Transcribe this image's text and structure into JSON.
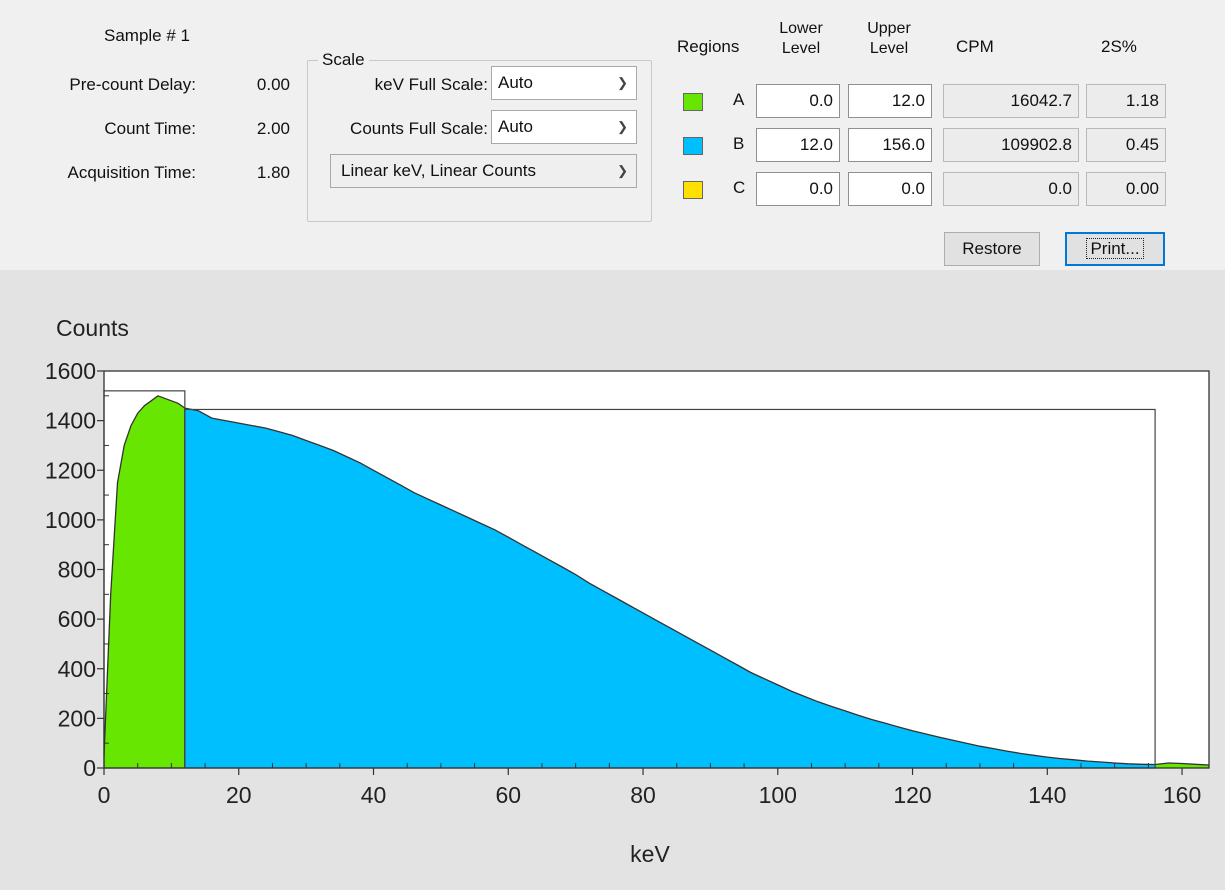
{
  "info": {
    "sample_label": "Sample # 1",
    "rows": [
      {
        "label": "Pre-count Delay:",
        "value": "0.00"
      },
      {
        "label": "Count Time:",
        "value": "2.00"
      },
      {
        "label": "Acquisition Time:",
        "value": "1.80"
      }
    ]
  },
  "scale": {
    "title": "Scale",
    "kev_label": "keV Full Scale:",
    "kev_value": "Auto",
    "counts_label": "Counts Full Scale:",
    "counts_value": "Auto",
    "mode_value": "Linear keV, Linear Counts"
  },
  "regions": {
    "headers": {
      "regions": "Regions",
      "lower_1": "Lower",
      "lower_2": "Level",
      "upper_1": "Upper",
      "upper_2": "Level",
      "cpm": "CPM",
      "twos": "2S%"
    },
    "rows": [
      {
        "name": "A",
        "color": "#66e600",
        "lower": "0.0",
        "upper": "12.0",
        "cpm": "16042.7",
        "twos": "1.18"
      },
      {
        "name": "B",
        "color": "#00bfff",
        "lower": "12.0",
        "upper": "156.0",
        "cpm": "109902.8",
        "twos": "0.45"
      },
      {
        "name": "C",
        "color": "#ffe000",
        "lower": "0.0",
        "upper": "0.0",
        "cpm": "0.0",
        "twos": "0.00"
      }
    ]
  },
  "buttons": {
    "restore": "Restore",
    "print": "Print..."
  },
  "chart_data": {
    "type": "area",
    "ylabel": "Counts",
    "xlabel": "keV",
    "xlim": [
      0,
      164
    ],
    "ylim": [
      0,
      1600
    ],
    "x_ticks": [
      0,
      20,
      40,
      60,
      80,
      100,
      120,
      140,
      160
    ],
    "y_ticks": [
      0,
      200,
      400,
      600,
      800,
      1000,
      1200,
      1400,
      1600
    ],
    "grid": false,
    "region_boxes": [
      {
        "region": "A",
        "x": [
          0,
          12
        ],
        "y": 1520
      },
      {
        "region": "B",
        "x": [
          12,
          156
        ],
        "y": 1445
      }
    ],
    "series": [
      {
        "x": [
          0,
          1,
          2,
          3,
          4,
          5,
          6,
          7,
          8,
          9,
          10,
          11,
          12,
          14,
          16,
          18,
          20,
          22,
          24,
          26,
          28,
          30,
          32,
          34,
          36,
          38,
          40,
          42,
          44,
          46,
          48,
          50,
          52,
          54,
          56,
          58,
          60,
          62,
          64,
          66,
          68,
          70,
          72,
          74,
          76,
          78,
          80,
          82,
          84,
          86,
          88,
          90,
          92,
          94,
          96,
          98,
          100,
          102,
          104,
          106,
          108,
          110,
          112,
          114,
          116,
          118,
          120,
          122,
          124,
          126,
          128,
          130,
          132,
          134,
          136,
          138,
          140,
          142,
          144,
          146,
          148,
          150,
          152,
          154,
          156,
          158,
          160,
          162,
          164
        ],
        "y": [
          50,
          700,
          1150,
          1300,
          1380,
          1430,
          1460,
          1480,
          1500,
          1490,
          1480,
          1470,
          1450,
          1440,
          1410,
          1400,
          1390,
          1380,
          1370,
          1355,
          1340,
          1320,
          1300,
          1280,
          1255,
          1230,
          1200,
          1170,
          1140,
          1110,
          1085,
          1060,
          1035,
          1010,
          985,
          960,
          930,
          900,
          870,
          840,
          810,
          780,
          745,
          715,
          685,
          655,
          625,
          595,
          565,
          535,
          505,
          475,
          445,
          415,
          385,
          360,
          335,
          310,
          288,
          267,
          248,
          230,
          212,
          195,
          180,
          165,
          150,
          137,
          124,
          112,
          100,
          88,
          78,
          68,
          59,
          51,
          44,
          38,
          33,
          28,
          24,
          20,
          17,
          15,
          14,
          20,
          18,
          15,
          12
        ]
      }
    ]
  }
}
